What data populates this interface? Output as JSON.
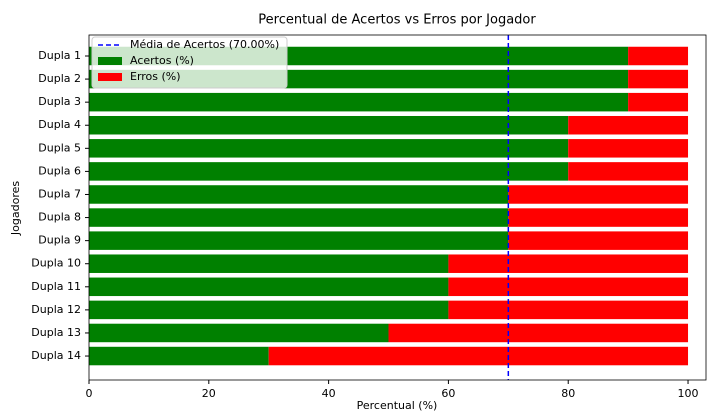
{
  "chart_data": {
    "type": "stacked_barh",
    "title": "Percentual de Acertos vs Erros por Jogador",
    "xlabel": "Percentual (%)",
    "ylabel": "Jogadores",
    "categories": [
      "Dupla 1",
      "Dupla 2",
      "Dupla 3",
      "Dupla 4",
      "Dupla 5",
      "Dupla 6",
      "Dupla 7",
      "Dupla 8",
      "Dupla 9",
      "Dupla 10",
      "Dupla 11",
      "Dupla 12",
      "Dupla 13",
      "Dupla 14"
    ],
    "series": [
      {
        "name": "Acertos (%)",
        "color": "green",
        "values": [
          90,
          90,
          90,
          80,
          80,
          80,
          70,
          70,
          70,
          60,
          60,
          60,
          50,
          30
        ]
      },
      {
        "name": "Erros (%)",
        "color": "red",
        "values": [
          10,
          10,
          10,
          20,
          20,
          20,
          30,
          30,
          30,
          40,
          40,
          40,
          50,
          70
        ]
      }
    ],
    "mean_line": {
      "value": 70,
      "label": "Média de Acertos (70.00%)",
      "color": "blue"
    },
    "xlim": [
      0,
      103
    ],
    "xticks": [
      0,
      20,
      40,
      60,
      80,
      100
    ],
    "legend": "upper left"
  }
}
